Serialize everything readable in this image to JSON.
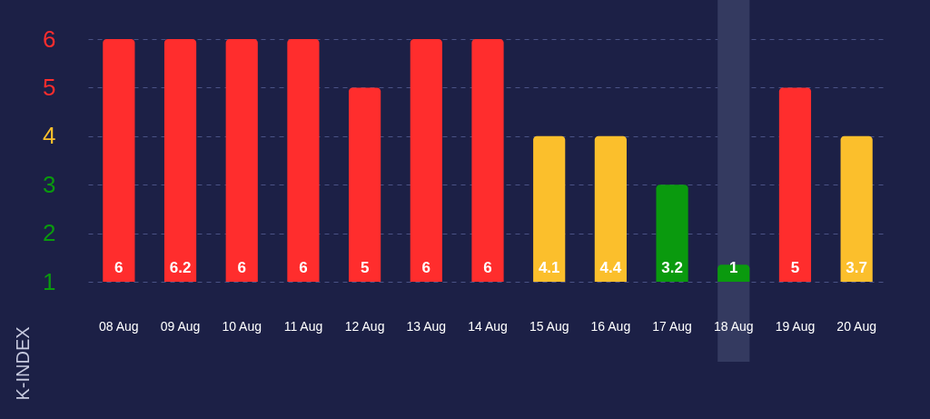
{
  "chart_data": {
    "type": "bar",
    "ylabel": "K-INDEX",
    "categories": [
      "08 Aug",
      "09 Aug",
      "10 Aug",
      "11 Aug",
      "12 Aug",
      "13 Aug",
      "14 Aug",
      "15 Aug",
      "16 Aug",
      "17 Aug",
      "18 Aug",
      "19 Aug",
      "20 Aug"
    ],
    "values": [
      6,
      6,
      6,
      6,
      5,
      6,
      6,
      4,
      4,
      3,
      1.35,
      5,
      4
    ],
    "colors": [
      "#ff2d2d",
      "#ff2d2d",
      "#ff2d2d",
      "#ff2d2d",
      "#ff2d2d",
      "#ff2d2d",
      "#ff2d2d",
      "#fbbf2c",
      "#fbbf2c",
      "#0a9a0e",
      "#0a9a0e",
      "#ff2d2d",
      "#fbbf2c"
    ],
    "ylim": [
      1,
      6
    ],
    "yticks": [
      1,
      2,
      3,
      4,
      5,
      6
    ],
    "grid": "y",
    "bands": [
      {
        "axis": "x",
        "from": "18 Aug",
        "to": "18 Aug",
        "color": "#343a60"
      }
    ],
    "annotations": [
      "6",
      "6.2",
      "6",
      "6",
      "5",
      "6",
      "6",
      "4.1",
      "4.4",
      "3.2",
      "1",
      "5",
      "3.7"
    ]
  }
}
